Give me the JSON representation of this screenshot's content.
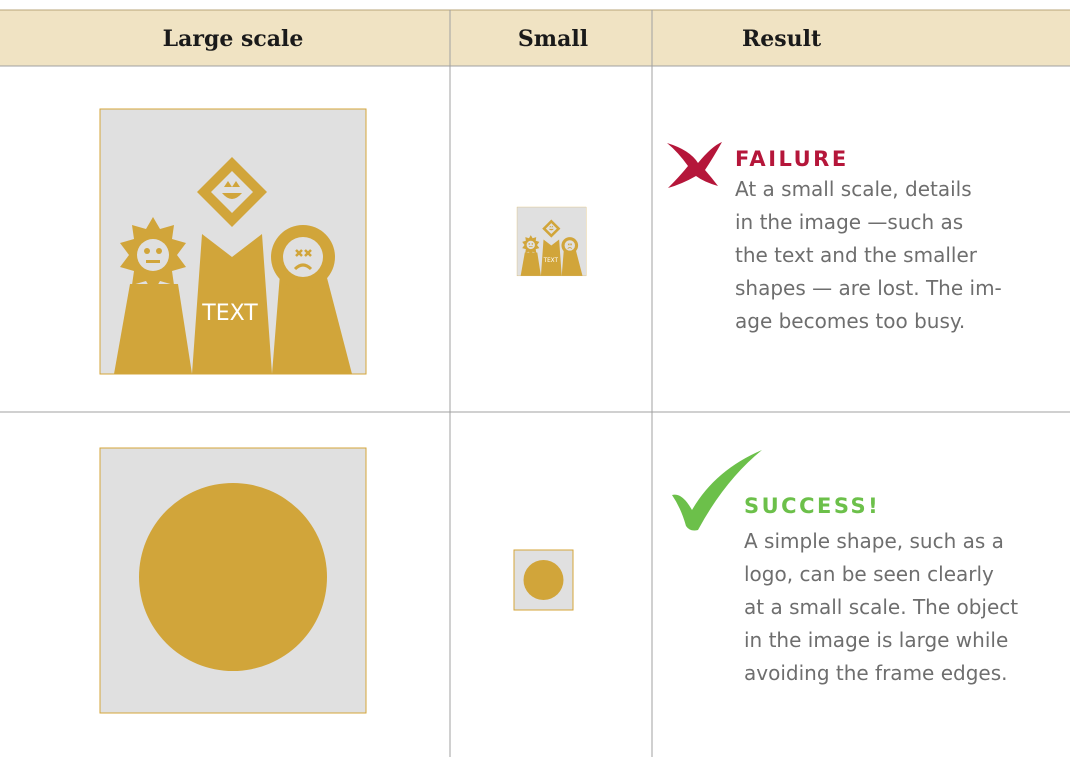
{
  "header": {
    "columns": [
      "Large scale",
      "Small",
      "Result"
    ]
  },
  "rows": [
    {
      "image_text": "TEXT",
      "status": "FAILURE",
      "description": [
        "At a small scale, details",
        "in the image —such as",
        "the text and the smaller",
        "shapes — are lost. The im-",
        "age becomes too busy."
      ]
    },
    {
      "status": "SUCCESS!",
      "description": [
        "A simple shape, such as a",
        "logo, can be seen clearly",
        "at a small scale. The object",
        "in the image is large while",
        "avoiding the frame edges."
      ]
    }
  ]
}
